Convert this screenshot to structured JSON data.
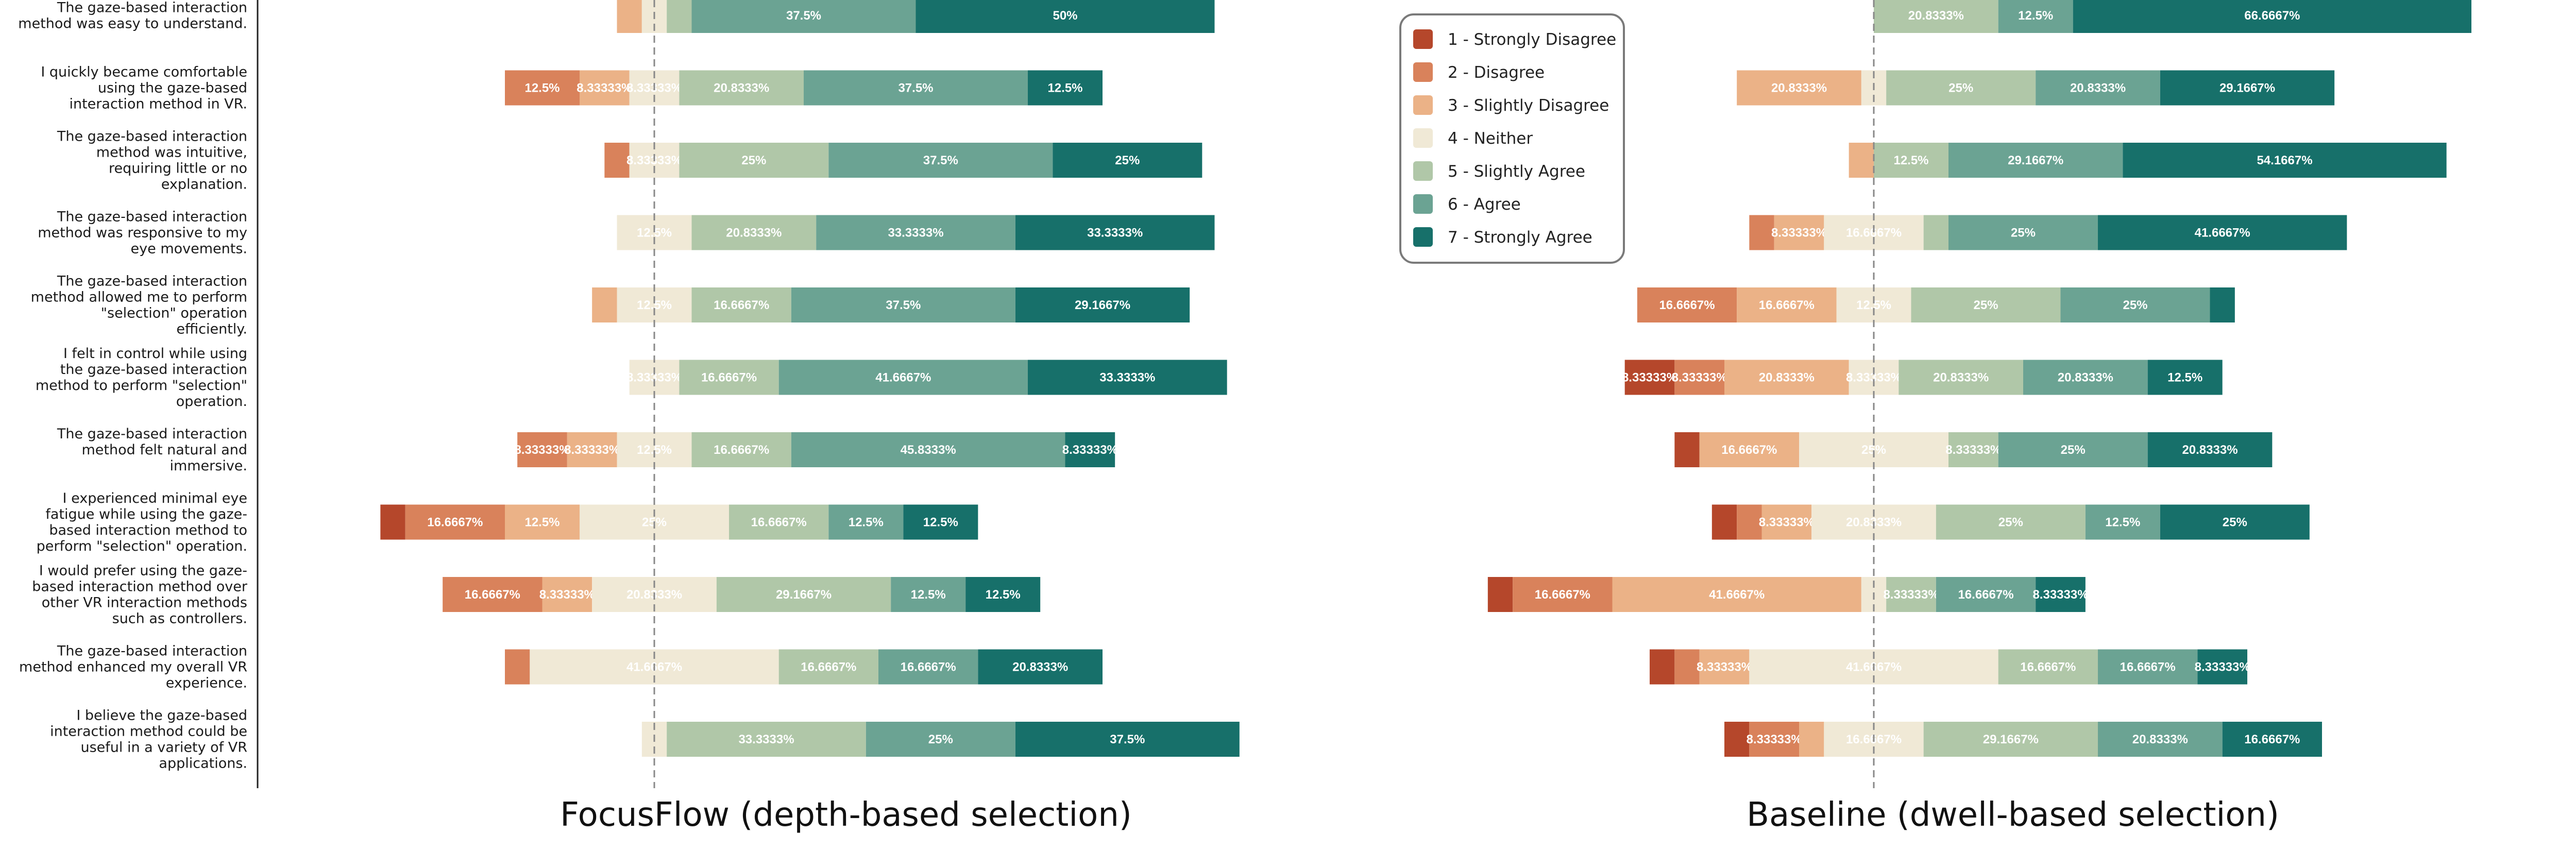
{
  "chart_data": {
    "type": "diverging-stacked-bar",
    "x_unit": "percent",
    "center_category": "4 - Neither",
    "scale": [
      {
        "key": "sd",
        "label": "1 - Strongly Disagree",
        "color": "#b5472b",
        "text_color": "#ffffff"
      },
      {
        "key": "d",
        "label": "2 - Disagree",
        "color": "#d9825b",
        "text_color": "#ffffff"
      },
      {
        "key": "sld",
        "label": "3 - Slightly Disagree",
        "color": "#ebb287",
        "text_color": "#ffffff"
      },
      {
        "key": "n",
        "label": "4 - Neither",
        "color": "#f0e9d6",
        "text_color": "#ffffff"
      },
      {
        "key": "sla",
        "label": "5 - Slightly Agree",
        "color": "#b0c7a8",
        "text_color": "#ffffff"
      },
      {
        "key": "a",
        "label": "6 - Agree",
        "color": "#6ba393",
        "text_color": "#ffffff"
      },
      {
        "key": "sa",
        "label": "7 - Strongly Agree",
        "color": "#17706a",
        "text_color": "#ffffff"
      }
    ],
    "questions": [
      "The gaze-based interaction method was easy to understand.",
      "I quickly became comfortable using the gaze-based interaction method in VR.",
      "The gaze-based interaction method was intuitive, requiring little or no explanation.",
      "The gaze-based interaction method was responsive to my eye movements.",
      "The gaze-based interaction method allowed me to perform \"selection\" operation efficiently.",
      "I felt in control while using the gaze-based interaction method to perform \"selection\" operation.",
      "The gaze-based interaction method felt natural and immersive.",
      "I experienced minimal eye fatigue while using the gaze-based interaction method to perform \"selection\" operation.",
      "I would prefer using the gaze-based interaction method over other VR interaction methods such as controllers.",
      "The gaze-based interaction method enhanced my overall VR experience.",
      "I believe the gaze-based interaction method could be useful in a variety of VR applications."
    ],
    "question_lines": [
      [
        "The gaze-based interaction",
        "method was easy to understand."
      ],
      [
        "I quickly became comfortable",
        "using the gaze-based",
        "interaction method in VR."
      ],
      [
        "The gaze-based interaction",
        "method was intuitive,",
        "requiring little or no",
        "explanation."
      ],
      [
        "The gaze-based interaction",
        "method was responsive to my",
        "eye movements."
      ],
      [
        "The gaze-based interaction",
        "method allowed me to perform",
        "\"selection\" operation",
        "efficiently."
      ],
      [
        "I felt in control while using",
        "the gaze-based interaction",
        "method to perform \"selection\"",
        "operation."
      ],
      [
        "The gaze-based interaction",
        "method felt natural and",
        "immersive."
      ],
      [
        "I experienced minimal eye",
        "fatigue while using the gaze-",
        "based interaction method to",
        "perform \"selection\" operation."
      ],
      [
        "I would prefer using the gaze-",
        "based interaction method over",
        "other VR interaction methods",
        "such as controllers."
      ],
      [
        "The gaze-based interaction",
        "method enhanced my overall VR",
        "experience."
      ],
      [
        "I believe the gaze-based",
        "interaction method could be",
        "useful in a variety of VR",
        "applications."
      ]
    ],
    "panels": [
      {
        "title": "FocusFlow (depth-based selection)",
        "data": [
          [
            0,
            0,
            4.1667,
            4.1667,
            4.1667,
            37.5,
            50
          ],
          [
            0,
            12.5,
            8.3333,
            8.3333,
            20.8333,
            37.5,
            12.5
          ],
          [
            0,
            4.1667,
            0,
            8.3333,
            25,
            37.5,
            25
          ],
          [
            0,
            0,
            0,
            12.5,
            20.8333,
            33.3333,
            33.3333
          ],
          [
            0,
            0,
            4.1667,
            12.5,
            16.6667,
            37.5,
            29.1667
          ],
          [
            0,
            0,
            0,
            8.3333,
            16.6667,
            41.6667,
            33.3333
          ],
          [
            0,
            8.3333,
            8.3333,
            12.5,
            16.6667,
            45.8333,
            8.3333
          ],
          [
            4.1667,
            16.6667,
            12.5,
            25,
            16.6667,
            12.5,
            12.5
          ],
          [
            0,
            16.6667,
            8.3333,
            20.8333,
            29.1667,
            12.5,
            12.5
          ],
          [
            0,
            4.1667,
            0,
            41.6667,
            16.6667,
            16.6667,
            20.8333
          ],
          [
            0,
            0,
            0,
            4.1667,
            33.3333,
            25,
            37.5
          ]
        ],
        "labels": [
          [
            "",
            "",
            "",
            "",
            "",
            "37.5%",
            "50%"
          ],
          [
            "",
            "12.5%",
            "8.33333%",
            "8.33333%",
            "20.8333%",
            "37.5%",
            "12.5%"
          ],
          [
            "",
            "",
            "",
            "8.33333%",
            "25%",
            "37.5%",
            "25%"
          ],
          [
            "",
            "",
            "",
            "12.5%",
            "20.8333%",
            "33.3333%",
            "33.3333%"
          ],
          [
            "",
            "",
            "",
            "12.5%",
            "16.6667%",
            "37.5%",
            "29.1667%"
          ],
          [
            "",
            "",
            "",
            "8.33333%",
            "16.6667%",
            "41.6667%",
            "33.3333%"
          ],
          [
            "",
            "8.33333%",
            "8.33333%",
            "12.5%",
            "16.6667%",
            "45.8333%",
            "8.33333%"
          ],
          [
            "",
            "16.6667%",
            "12.5%",
            "25%",
            "16.6667%",
            "12.5%",
            "12.5%"
          ],
          [
            "",
            "16.6667%",
            "8.33333%",
            "20.8333%",
            "29.1667%",
            "12.5%",
            "12.5%"
          ],
          [
            "",
            "",
            "",
            "41.6667%",
            "16.6667%",
            "16.6667%",
            "20.8333%"
          ],
          [
            "",
            "",
            "",
            "",
            "33.3333%",
            "25%",
            "37.5%"
          ]
        ]
      },
      {
        "title": "Baseline (dwell-based selection)",
        "data": [
          [
            0,
            0,
            0,
            0,
            20.8333,
            12.5,
            66.6667
          ],
          [
            0,
            0,
            20.8333,
            4.1667,
            25,
            20.8333,
            29.1667
          ],
          [
            0,
            0,
            4.1667,
            0,
            12.5,
            29.1667,
            54.1667
          ],
          [
            0,
            4.1667,
            8.3333,
            16.6667,
            4.1667,
            25,
            41.6667
          ],
          [
            0,
            16.6667,
            16.6667,
            12.5,
            25,
            25,
            4.1667
          ],
          [
            8.3333,
            8.3333,
            20.8333,
            8.3333,
            20.8333,
            20.8333,
            12.5
          ],
          [
            4.1667,
            0,
            16.6667,
            25,
            8.3333,
            25,
            20.8333
          ],
          [
            4.1667,
            4.1667,
            8.3333,
            20.8333,
            25,
            12.5,
            25
          ],
          [
            4.1667,
            16.6667,
            41.6667,
            4.1667,
            8.3333,
            16.6667,
            8.3333
          ],
          [
            4.1667,
            4.1667,
            8.3333,
            41.6667,
            16.6667,
            16.6667,
            8.3333
          ],
          [
            4.1667,
            8.3333,
            4.1667,
            16.6667,
            29.1667,
            20.8333,
            16.6667
          ]
        ],
        "labels": [
          [
            "",
            "",
            "",
            "",
            "20.8333%",
            "12.5%",
            "66.6667%"
          ],
          [
            "",
            "",
            "20.8333%",
            "",
            "25%",
            "20.8333%",
            "29.1667%"
          ],
          [
            "",
            "",
            "",
            "",
            "12.5%",
            "29.1667%",
            "54.1667%"
          ],
          [
            "",
            "",
            "8.33333%",
            "16.6667%",
            "",
            "25%",
            "41.6667%"
          ],
          [
            "",
            "16.6667%",
            "16.6667%",
            "12.5%",
            "25%",
            "25%",
            ""
          ],
          [
            "8.33333%",
            "8.33333%",
            "20.8333%",
            "8.33333%",
            "20.8333%",
            "20.8333%",
            "12.5%"
          ],
          [
            "",
            "",
            "16.6667%",
            "25%",
            "8.33333%",
            "25%",
            "20.8333%"
          ],
          [
            "",
            "",
            "8.33333%",
            "20.8333%",
            "25%",
            "12.5%",
            "25%"
          ],
          [
            "",
            "16.6667%",
            "41.6667%",
            "",
            "8.33333%",
            "16.6667%",
            "8.33333%"
          ],
          [
            "",
            "",
            "8.33333%",
            "41.6667%",
            "16.6667%",
            "16.6667%",
            "8.33333%"
          ],
          [
            "",
            "8.33333%",
            "",
            "16.6667%",
            "29.1667%",
            "20.8333%",
            "16.6667%"
          ]
        ]
      }
    ],
    "legend_position": "top-center"
  }
}
